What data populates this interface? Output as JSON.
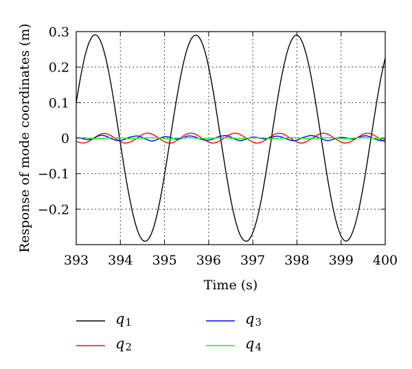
{
  "chart_data": {
    "type": "line",
    "title": "",
    "xlabel": "Time (s)",
    "ylabel": "Response of mode coordinates (m)",
    "xlim": [
      393,
      400
    ],
    "ylim": [
      -0.3,
      0.3
    ],
    "grid": true,
    "grid_style": "dotted",
    "x_ticks": [
      393,
      394,
      395,
      396,
      397,
      398,
      399,
      400
    ],
    "x_tick_labels": [
      "393",
      "394",
      "395",
      "396",
      "397",
      "398",
      "399",
      "400"
    ],
    "y_ticks": [
      0.3,
      0.2,
      0.1,
      0,
      -0.1,
      -0.2
    ],
    "y_tick_labels": [
      "0.3",
      "0.2",
      "0.1",
      "0",
      "−0.1",
      "−0.2"
    ],
    "legend_placement": "below",
    "series": [
      {
        "name": "q1",
        "label_main": "q",
        "label_sub": "1",
        "color": "#000000",
        "x": [
          393.0,
          393.1,
          393.2,
          393.3,
          393.4,
          393.5,
          393.6,
          393.7,
          393.8,
          393.9,
          394.0,
          394.1,
          394.2,
          394.3,
          394.4,
          394.5,
          394.6,
          394.7,
          394.8,
          394.9,
          395.0,
          395.1,
          395.2,
          395.3,
          395.4,
          395.5,
          395.6,
          395.7,
          395.8,
          395.9,
          396.0,
          396.1,
          396.2,
          396.3,
          396.4,
          396.5,
          396.6,
          396.7,
          396.8,
          396.9,
          397.0,
          397.1,
          397.2,
          397.3,
          397.4,
          397.5,
          397.6,
          397.7,
          397.8,
          397.9,
          398.0,
          398.1,
          398.2,
          398.3,
          398.4,
          398.5,
          398.6,
          398.7,
          398.8,
          398.9,
          399.0,
          399.1,
          399.2,
          399.3,
          399.4,
          399.5,
          399.6,
          399.7,
          399.8,
          399.9,
          400.0
        ],
        "y": [
          0.1,
          0.173,
          0.232,
          0.272,
          0.29,
          0.285,
          0.257,
          0.208,
          0.143,
          0.066,
          -0.014,
          -0.093,
          -0.163,
          -0.222,
          -0.264,
          -0.287,
          -0.289,
          -0.27,
          -0.231,
          -0.174,
          -0.104,
          -0.026,
          0.054,
          0.129,
          0.195,
          0.246,
          0.278,
          0.29,
          0.281,
          0.251,
          0.2,
          0.134,
          0.057,
          -0.024,
          -0.102,
          -0.172,
          -0.229,
          -0.269,
          -0.288,
          -0.288,
          -0.266,
          -0.226,
          -0.168,
          -0.096,
          -0.018,
          0.063,
          0.138,
          0.202,
          0.251,
          0.281,
          0.29,
          0.276,
          0.241,
          0.187,
          0.118,
          0.04,
          -0.04,
          -0.118,
          -0.186,
          -0.24,
          -0.276,
          -0.29,
          -0.281,
          -0.251,
          -0.202,
          -0.138,
          -0.062,
          0.018,
          0.097,
          0.168,
          0.226
        ]
      },
      {
        "name": "q2",
        "label_main": "q",
        "label_sub": "2",
        "color": "#ff0000",
        "x": [
          393.0,
          393.1,
          393.2,
          393.3,
          393.4,
          393.5,
          393.6,
          393.7,
          393.8,
          393.9,
          394.0,
          394.1,
          394.2,
          394.3,
          394.4,
          394.5,
          394.6,
          394.7,
          394.8,
          394.9,
          395.0,
          395.1,
          395.2,
          395.3,
          395.4,
          395.5,
          395.6,
          395.7,
          395.8,
          395.9,
          396.0,
          396.1,
          396.2,
          396.3,
          396.4,
          396.5,
          396.6,
          396.7,
          396.8,
          396.9,
          397.0,
          397.1,
          397.2,
          397.3,
          397.4,
          397.5,
          397.6,
          397.7,
          397.8,
          397.9,
          398.0,
          398.1,
          398.2,
          398.3,
          398.4,
          398.5,
          398.6,
          398.7,
          398.8,
          398.9,
          399.0,
          399.1,
          399.2,
          399.3,
          399.4,
          399.5,
          399.6,
          399.7,
          399.8,
          399.9,
          400.0
        ],
        "y": [
          -0.009,
          -0.013,
          -0.013,
          -0.008,
          0.0,
          0.008,
          0.013,
          0.012,
          0.006,
          -0.002,
          -0.01,
          -0.014,
          -0.012,
          -0.006,
          0.002,
          0.01,
          0.014,
          0.012,
          0.006,
          -0.003,
          -0.01,
          -0.014,
          -0.012,
          -0.005,
          0.004,
          0.011,
          0.014,
          0.011,
          0.004,
          -0.004,
          -0.011,
          -0.014,
          -0.011,
          -0.004,
          0.004,
          0.011,
          0.014,
          0.011,
          0.004,
          -0.004,
          -0.011,
          -0.014,
          -0.011,
          -0.004,
          0.004,
          0.011,
          0.014,
          0.011,
          0.004,
          -0.004,
          -0.011,
          -0.014,
          -0.011,
          -0.004,
          0.004,
          0.011,
          0.014,
          0.011,
          0.004,
          -0.004,
          -0.011,
          -0.014,
          -0.011,
          -0.004,
          0.004,
          0.011,
          0.014,
          0.011,
          0.004,
          -0.004,
          -0.011
        ]
      },
      {
        "name": "q3",
        "label_main": "q",
        "label_sub": "3",
        "color": "#0000ff",
        "x": [
          393.0,
          393.1,
          393.2,
          393.3,
          393.4,
          393.5,
          393.6,
          393.7,
          393.8,
          393.9,
          394.0,
          394.1,
          394.2,
          394.3,
          394.4,
          394.5,
          394.6,
          394.7,
          394.8,
          394.9,
          395.0,
          395.1,
          395.2,
          395.3,
          395.4,
          395.5,
          395.6,
          395.7,
          395.8,
          395.9,
          396.0,
          396.1,
          396.2,
          396.3,
          396.4,
          396.5,
          396.6,
          396.7,
          396.8,
          396.9,
          397.0,
          397.1,
          397.2,
          397.3,
          397.4,
          397.5,
          397.6,
          397.7,
          397.8,
          397.9,
          398.0,
          398.1,
          398.2,
          398.3,
          398.4,
          398.5,
          398.6,
          398.7,
          398.8,
          398.9,
          399.0,
          399.1,
          399.2,
          399.3,
          399.4,
          399.5,
          399.6,
          399.7,
          399.8,
          399.9,
          400.0
        ],
        "y": [
          0.002,
          0.0,
          -0.003,
          -0.004,
          0.0,
          0.006,
          0.008,
          0.004,
          -0.002,
          -0.006,
          -0.007,
          -0.003,
          0.002,
          0.005,
          0.006,
          0.002,
          -0.004,
          -0.008,
          -0.006,
          0.0,
          0.004,
          0.003,
          -0.001,
          -0.003,
          0.0,
          0.005,
          0.006,
          0.003,
          -0.002,
          -0.005,
          -0.006,
          -0.002,
          0.003,
          0.006,
          0.007,
          0.003,
          -0.003,
          -0.007,
          -0.005,
          0.0,
          0.003,
          0.002,
          -0.001,
          -0.002,
          0.001,
          0.005,
          0.005,
          0.001,
          -0.004,
          -0.007,
          -0.006,
          0.0,
          0.004,
          0.007,
          0.006,
          0.001,
          -0.004,
          -0.007,
          -0.004,
          0.0,
          0.002,
          0.001,
          -0.002,
          -0.002,
          0.002,
          0.006,
          0.006,
          0.001,
          -0.004,
          -0.007,
          -0.005
        ]
      },
      {
        "name": "q4",
        "label_main": "q",
        "label_sub": "4",
        "color": "#00ff00",
        "x": [
          393.0,
          393.1,
          393.2,
          393.3,
          393.4,
          393.5,
          393.6,
          393.7,
          393.8,
          393.9,
          394.0,
          394.1,
          394.2,
          394.3,
          394.4,
          394.5,
          394.6,
          394.7,
          394.8,
          394.9,
          395.0,
          395.1,
          395.2,
          395.3,
          395.4,
          395.5,
          395.6,
          395.7,
          395.8,
          395.9,
          396.0,
          396.1,
          396.2,
          396.3,
          396.4,
          396.5,
          396.6,
          396.7,
          396.8,
          396.9,
          397.0,
          397.1,
          397.2,
          397.3,
          397.4,
          397.5,
          397.6,
          397.7,
          397.8,
          397.9,
          398.0,
          398.1,
          398.2,
          398.3,
          398.4,
          398.5,
          398.6,
          398.7,
          398.8,
          398.9,
          399.0,
          399.1,
          399.2,
          399.3,
          399.4,
          399.5,
          399.6,
          399.7,
          399.8,
          399.9,
          400.0
        ],
        "y": [
          0.001,
          0.001,
          0.001,
          0.0,
          -0.001,
          -0.001,
          -0.001,
          0.0,
          0.001,
          0.001,
          0.001,
          0.0,
          -0.001,
          -0.001,
          -0.001,
          0.0,
          0.001,
          0.001,
          0.001,
          0.0,
          -0.001,
          -0.001,
          -0.001,
          0.0,
          0.001,
          0.001,
          0.001,
          0.0,
          -0.001,
          -0.001,
          -0.001,
          0.0,
          0.001,
          0.001,
          0.001,
          0.0,
          -0.001,
          -0.001,
          -0.001,
          0.0,
          0.001,
          0.001,
          0.001,
          0.0,
          -0.001,
          -0.001,
          -0.001,
          0.0,
          0.001,
          0.001,
          0.001,
          0.0,
          -0.001,
          -0.001,
          -0.001,
          0.0,
          0.001,
          0.001,
          0.001,
          0.0,
          -0.001,
          -0.001,
          -0.001,
          0.0,
          0.001,
          0.001,
          0.001,
          0.0,
          -0.001,
          -0.001,
          -0.001
        ]
      }
    ]
  }
}
